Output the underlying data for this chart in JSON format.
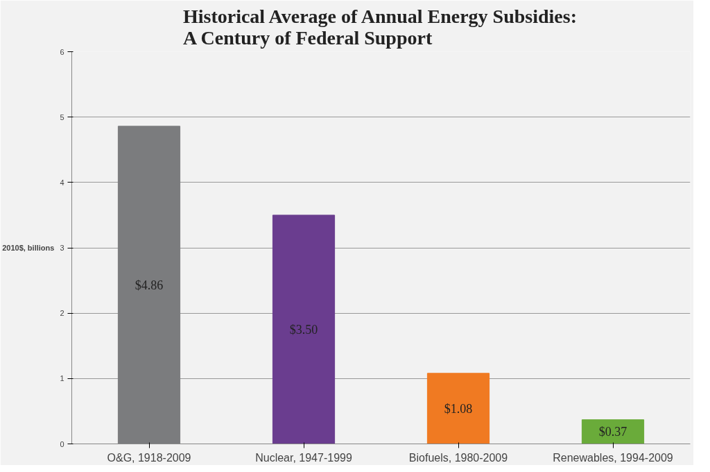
{
  "chart_data": {
    "type": "bar",
    "title": "Historical Average of Annual Energy Subsidies:\nA Century of Federal Support",
    "ylabel": "2010$, billions",
    "categories": [
      "O&G, 1918-2009",
      "Nuclear, 1947-1999",
      "Biofuels, 1980-2009",
      "Renewables, 1994-2009"
    ],
    "values": [
      4.86,
      3.5,
      1.08,
      0.37
    ],
    "value_labels": [
      "$4.86",
      "$3.50",
      "$1.08",
      "$0.37"
    ],
    "colors": [
      "#7b7c7e",
      "#6a3d8f",
      "#f07a22",
      "#6aab3a"
    ],
    "ylim": [
      0,
      6
    ],
    "yticks": [
      0,
      1,
      2,
      3,
      4,
      5,
      6
    ],
    "grid": "y"
  }
}
